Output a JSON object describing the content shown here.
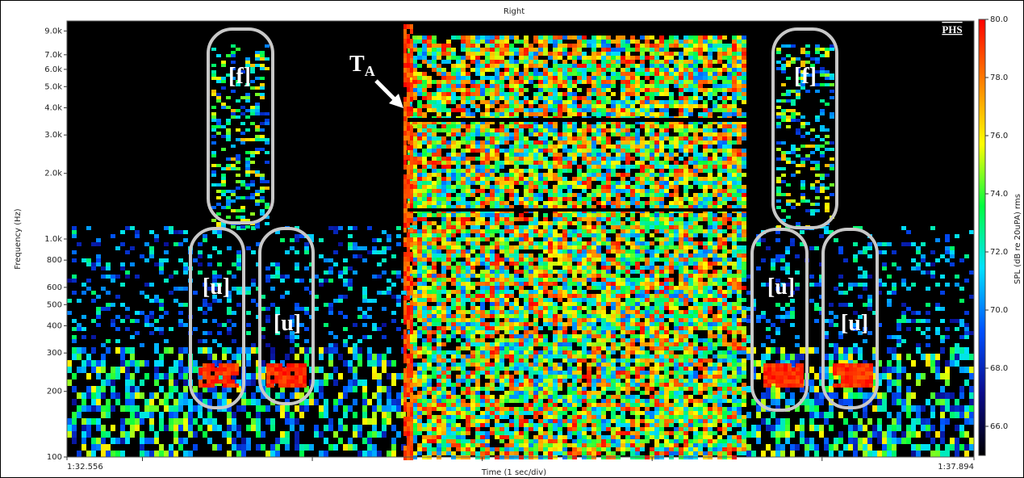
{
  "chart_data": {
    "type": "spectrogram",
    "title": "Right",
    "y_label": "Frequency (Hz)",
    "x_label": "Time (1 sec/div)",
    "ylim": [
      100,
      10000
    ],
    "y_log": true,
    "yticks": [
      {
        "value": 9000,
        "label": "9.0k"
      },
      {
        "value": 7000,
        "label": "7.0k"
      },
      {
        "value": 6000,
        "label": "6.0k"
      },
      {
        "value": 5000,
        "label": "5.0k"
      },
      {
        "value": 4000,
        "label": "4.0k"
      },
      {
        "value": 3000,
        "label": "3.0k"
      },
      {
        "value": 2000,
        "label": "2.0k"
      },
      {
        "value": 1000,
        "label": "1.0k"
      },
      800,
      600,
      500,
      400,
      300,
      200,
      100
    ],
    "xlim": [
      92.556,
      97.894
    ],
    "xticks": [
      {
        "value": 92.556,
        "label": "1:32.556"
      },
      {
        "value": 97.894,
        "label": "1:37.894"
      }
    ],
    "x_minor_ticks": [
      93,
      94,
      95,
      96,
      97
    ],
    "colorbar": {
      "label": "SPL (dB re 20uPA) rms",
      "lim": [
        65,
        80
      ],
      "ticks": [
        {
          "value": 80,
          "label": "80.0"
        },
        {
          "value": 78,
          "label": "78.0"
        },
        {
          "value": 76,
          "label": "76.0"
        },
        {
          "value": 74,
          "label": "74.0"
        },
        {
          "value": 72,
          "label": "72.0"
        },
        {
          "value": 70,
          "label": "70.0"
        },
        {
          "value": 68,
          "label": "68.0"
        },
        {
          "value": 66,
          "label": "66.0"
        }
      ],
      "colormap": [
        "#000000",
        "#0a0a8c",
        "#0050ff",
        "#00e0ff",
        "#00ff40",
        "#ffff00",
        "#ff8000",
        "#ff0000"
      ]
    },
    "watermark": "PHS",
    "annotations": [
      {
        "text": "[f]"
      },
      {
        "text": "[f]"
      },
      {
        "text": "[u]"
      },
      {
        "text": "[u]"
      },
      {
        "text": "[u]"
      },
      {
        "text": "[u]"
      },
      {
        "text": "T",
        "subscript": "A"
      }
    ]
  }
}
